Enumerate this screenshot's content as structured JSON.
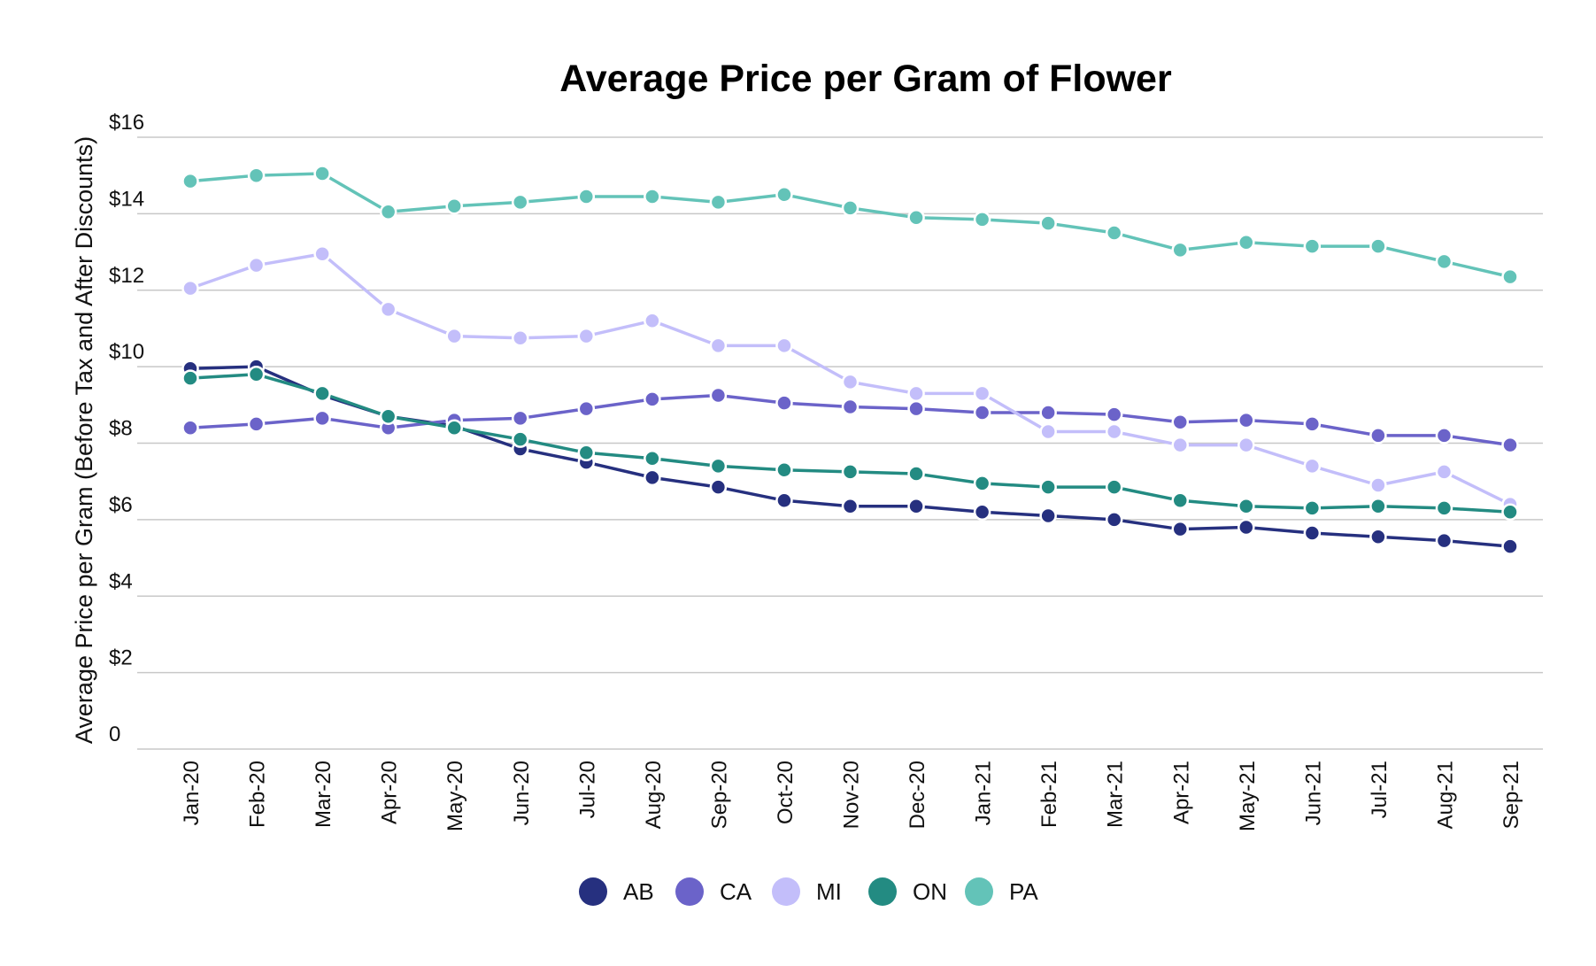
{
  "chart_data": {
    "type": "line",
    "title": "Average Price per Gram of Flower",
    "xlabel": "",
    "ylabel": "Average Price per Gram (Before Tax and After Discounts)",
    "ylim": [
      0,
      16
    ],
    "y_ticks": [
      {
        "value": 0,
        "label": "0"
      },
      {
        "value": 2,
        "label": "$2"
      },
      {
        "value": 4,
        "label": "$4"
      },
      {
        "value": 6,
        "label": "$6"
      },
      {
        "value": 8,
        "label": "$8"
      },
      {
        "value": 10,
        "label": "$10"
      },
      {
        "value": 12,
        "label": "$12"
      },
      {
        "value": 14,
        "label": "$14"
      },
      {
        "value": 16,
        "label": "$16"
      }
    ],
    "grid": true,
    "legend_position": "bottom",
    "categories": [
      "Jan-20",
      "Feb-20",
      "Mar-20",
      "Apr-20",
      "May-20",
      "Jun-20",
      "Jul-20",
      "Aug-20",
      "Sep-20",
      "Oct-20",
      "Nov-20",
      "Dec-20",
      "Jan-21",
      "Feb-21",
      "Mar-21",
      "Apr-21",
      "May-21",
      "Jun-21",
      "Jul-21",
      "Aug-21",
      "Sep-21"
    ],
    "series": [
      {
        "name": "AB",
        "color": "#26307f",
        "values": [
          9.95,
          10.0,
          9.25,
          8.7,
          8.45,
          7.85,
          7.5,
          7.1,
          6.85,
          6.5,
          6.35,
          6.35,
          6.2,
          6.1,
          6.0,
          5.75,
          5.8,
          5.65,
          5.55,
          5.45,
          5.3
        ]
      },
      {
        "name": "CA",
        "color": "#6b63c9",
        "values": [
          8.4,
          8.5,
          8.65,
          8.4,
          8.6,
          8.65,
          8.9,
          9.15,
          9.25,
          9.05,
          8.95,
          8.9,
          8.8,
          8.8,
          8.75,
          8.55,
          8.6,
          8.5,
          8.2,
          8.2,
          7.95
        ]
      },
      {
        "name": "MI",
        "color": "#c3befa",
        "values": [
          12.05,
          12.65,
          12.95,
          11.5,
          10.8,
          10.75,
          10.8,
          11.2,
          10.55,
          10.55,
          9.6,
          9.3,
          9.3,
          8.3,
          8.3,
          7.95,
          7.95,
          7.4,
          6.9,
          7.25,
          6.4
        ]
      },
      {
        "name": "ON",
        "color": "#238b82",
        "values": [
          9.7,
          9.8,
          9.3,
          8.7,
          8.4,
          8.1,
          7.75,
          7.6,
          7.4,
          7.3,
          7.25,
          7.2,
          6.95,
          6.85,
          6.85,
          6.5,
          6.35,
          6.3,
          6.35,
          6.3,
          6.2
        ]
      },
      {
        "name": "PA",
        "color": "#63c3b8",
        "values": [
          14.85,
          15.0,
          15.05,
          14.05,
          14.2,
          14.3,
          14.45,
          14.45,
          14.3,
          14.5,
          14.15,
          13.9,
          13.85,
          13.75,
          13.5,
          13.05,
          13.25,
          13.15,
          13.15,
          12.75,
          12.35
        ]
      }
    ]
  }
}
